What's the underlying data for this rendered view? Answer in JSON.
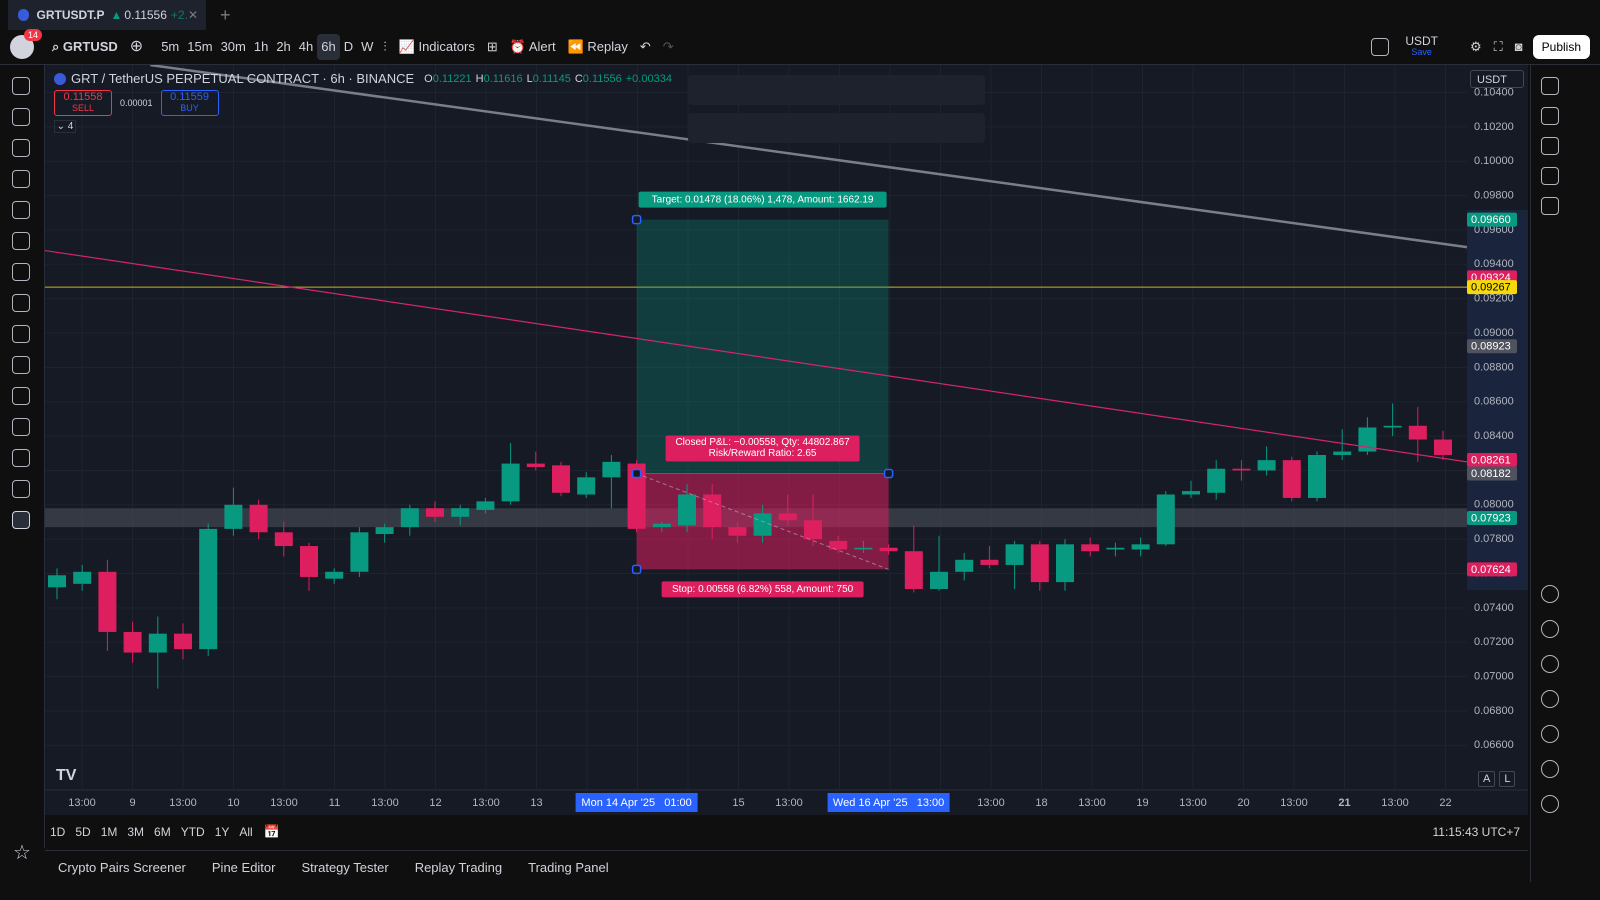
{
  "tab": {
    "symbol": "GRTUSDT.P",
    "price": "0.11556",
    "change": "+2.",
    "badge": "14"
  },
  "toolbar": {
    "symbol": "GRTUSD",
    "intervals": [
      "5m",
      "15m",
      "30m",
      "1h",
      "2h",
      "4h",
      "6h",
      "D",
      "W"
    ],
    "active_interval": "6h",
    "indicators": "Indicators",
    "alert": "Alert",
    "replay": "Replay",
    "currency": "USDT",
    "save": "Save",
    "publish": "Publish"
  },
  "legend": {
    "title": "GRT / TetherUS PERPETUAL CONTRACT · 6h · BINANCE",
    "ohlc": [
      [
        "O",
        "0.11221"
      ],
      [
        "H",
        "0.11616"
      ],
      [
        "L",
        "0.11145"
      ],
      [
        "C",
        "0.11556"
      ]
    ],
    "change": "+0.00334",
    "sell_price": "0.11558",
    "sell": "SELL",
    "spread": "0.00001",
    "buy_price": "0.11559",
    "buy": "BUY",
    "collapsed": "4"
  },
  "chart_data": {
    "type": "candlestick",
    "up_color": "#089981",
    "down_color": "#dd1f5f",
    "ylim": [
      0.0634,
      0.1056
    ],
    "yticks": [
      {
        "value": 0.066,
        "label": "0.06600"
      },
      {
        "value": 0.068,
        "label": "0.06800"
      },
      {
        "value": 0.07,
        "label": "0.07000"
      },
      {
        "value": 0.072,
        "label": "0.07200"
      },
      {
        "value": 0.074,
        "label": "0.07400"
      },
      {
        "value": 0.076,
        "label": "0.07600"
      },
      {
        "value": 0.078,
        "label": "0.07800"
      },
      {
        "value": 0.08,
        "label": "0.08000"
      },
      {
        "value": 0.082,
        "label": "0.08200"
      },
      {
        "value": 0.084,
        "label": "0.08400"
      },
      {
        "value": 0.086,
        "label": "0.08600"
      },
      {
        "value": 0.088,
        "label": "0.08800"
      },
      {
        "value": 0.09,
        "label": "0.09000"
      },
      {
        "value": 0.092,
        "label": "0.09200"
      },
      {
        "value": 0.094,
        "label": "0.09400"
      },
      {
        "value": 0.096,
        "label": "0.09600"
      },
      {
        "value": 0.098,
        "label": "0.09800"
      },
      {
        "value": 0.1,
        "label": "0.10000"
      },
      {
        "value": 0.102,
        "label": "0.10200"
      },
      {
        "value": 0.104,
        "label": "0.10400"
      }
    ],
    "grid": true,
    "axis_currency": "USDT",
    "candles": [
      {
        "o": 0.0752,
        "h": 0.0763,
        "l": 0.0745,
        "c": 0.0759
      },
      {
        "o": 0.0754,
        "h": 0.0765,
        "l": 0.075,
        "c": 0.0761
      },
      {
        "o": 0.0761,
        "h": 0.0768,
        "l": 0.0715,
        "c": 0.0726
      },
      {
        "o": 0.0726,
        "h": 0.0732,
        "l": 0.0708,
        "c": 0.0714
      },
      {
        "o": 0.0714,
        "h": 0.0735,
        "l": 0.0693,
        "c": 0.0725
      },
      {
        "o": 0.0725,
        "h": 0.0731,
        "l": 0.071,
        "c": 0.0716
      },
      {
        "o": 0.0716,
        "h": 0.0789,
        "l": 0.0712,
        "c": 0.0786
      },
      {
        "o": 0.0786,
        "h": 0.081,
        "l": 0.0782,
        "c": 0.08
      },
      {
        "o": 0.08,
        "h": 0.0803,
        "l": 0.078,
        "c": 0.0784
      },
      {
        "o": 0.0784,
        "h": 0.079,
        "l": 0.077,
        "c": 0.0776
      },
      {
        "o": 0.0776,
        "h": 0.0778,
        "l": 0.075,
        "c": 0.0758
      },
      {
        "o": 0.0757,
        "h": 0.0763,
        "l": 0.0754,
        "c": 0.0761
      },
      {
        "o": 0.0761,
        "h": 0.0787,
        "l": 0.0758,
        "c": 0.0784
      },
      {
        "o": 0.0783,
        "h": 0.0789,
        "l": 0.0778,
        "c": 0.0787
      },
      {
        "o": 0.0787,
        "h": 0.08,
        "l": 0.0782,
        "c": 0.0798
      },
      {
        "o": 0.0798,
        "h": 0.0802,
        "l": 0.079,
        "c": 0.0793
      },
      {
        "o": 0.0793,
        "h": 0.08,
        "l": 0.0788,
        "c": 0.0798
      },
      {
        "o": 0.0797,
        "h": 0.0804,
        "l": 0.0795,
        "c": 0.0802
      },
      {
        "o": 0.0802,
        "h": 0.0836,
        "l": 0.08,
        "c": 0.0824
      },
      {
        "o": 0.0824,
        "h": 0.0831,
        "l": 0.082,
        "c": 0.0822
      },
      {
        "o": 0.0823,
        "h": 0.0825,
        "l": 0.0805,
        "c": 0.0807
      },
      {
        "o": 0.0806,
        "h": 0.0819,
        "l": 0.0804,
        "c": 0.0816
      },
      {
        "o": 0.0816,
        "h": 0.0829,
        "l": 0.0798,
        "c": 0.0825
      },
      {
        "o": 0.0824,
        "h": 0.0826,
        "l": 0.0784,
        "c": 0.0786
      },
      {
        "o": 0.0787,
        "h": 0.079,
        "l": 0.0784,
        "c": 0.0789
      },
      {
        "o": 0.0788,
        "h": 0.0812,
        "l": 0.0784,
        "c": 0.0806
      },
      {
        "o": 0.0806,
        "h": 0.0812,
        "l": 0.078,
        "c": 0.0787
      },
      {
        "o": 0.0787,
        "h": 0.079,
        "l": 0.0778,
        "c": 0.0782
      },
      {
        "o": 0.0782,
        "h": 0.08,
        "l": 0.0778,
        "c": 0.0795
      },
      {
        "o": 0.0795,
        "h": 0.0806,
        "l": 0.0788,
        "c": 0.0791
      },
      {
        "o": 0.0791,
        "h": 0.0806,
        "l": 0.0776,
        "c": 0.078
      },
      {
        "o": 0.0779,
        "h": 0.0782,
        "l": 0.0772,
        "c": 0.0774
      },
      {
        "o": 0.0774,
        "h": 0.0779,
        "l": 0.0772,
        "c": 0.0775
      },
      {
        "o": 0.0775,
        "h": 0.0777,
        "l": 0.0771,
        "c": 0.0773
      },
      {
        "o": 0.0773,
        "h": 0.0788,
        "l": 0.0749,
        "c": 0.0751
      },
      {
        "o": 0.0751,
        "h": 0.0782,
        "l": 0.075,
        "c": 0.0761
      },
      {
        "o": 0.0761,
        "h": 0.0772,
        "l": 0.0756,
        "c": 0.0768
      },
      {
        "o": 0.0768,
        "h": 0.0776,
        "l": 0.0763,
        "c": 0.0765
      },
      {
        "o": 0.0765,
        "h": 0.0779,
        "l": 0.0751,
        "c": 0.0777
      },
      {
        "o": 0.0777,
        "h": 0.0779,
        "l": 0.075,
        "c": 0.0755
      },
      {
        "o": 0.0755,
        "h": 0.078,
        "l": 0.075,
        "c": 0.0777
      },
      {
        "o": 0.0777,
        "h": 0.0781,
        "l": 0.077,
        "c": 0.0773
      },
      {
        "o": 0.0774,
        "h": 0.0778,
        "l": 0.077,
        "c": 0.0775
      },
      {
        "o": 0.0774,
        "h": 0.0781,
        "l": 0.077,
        "c": 0.0777
      },
      {
        "o": 0.0777,
        "h": 0.0808,
        "l": 0.0776,
        "c": 0.0806
      },
      {
        "o": 0.0806,
        "h": 0.0814,
        "l": 0.0804,
        "c": 0.0808
      },
      {
        "o": 0.0807,
        "h": 0.0826,
        "l": 0.0803,
        "c": 0.0821
      },
      {
        "o": 0.0821,
        "h": 0.0826,
        "l": 0.0814,
        "c": 0.082
      },
      {
        "o": 0.082,
        "h": 0.0834,
        "l": 0.0817,
        "c": 0.0826
      },
      {
        "o": 0.0826,
        "h": 0.0828,
        "l": 0.0802,
        "c": 0.0804
      },
      {
        "o": 0.0804,
        "h": 0.0831,
        "l": 0.0802,
        "c": 0.0829
      },
      {
        "o": 0.0829,
        "h": 0.0844,
        "l": 0.0826,
        "c": 0.0831
      },
      {
        "o": 0.0831,
        "h": 0.0851,
        "l": 0.0829,
        "c": 0.0845
      },
      {
        "o": 0.0845,
        "h": 0.0859,
        "l": 0.084,
        "c": 0.0846
      },
      {
        "o": 0.0846,
        "h": 0.0857,
        "l": 0.0825,
        "c": 0.0838
      },
      {
        "o": 0.0838,
        "h": 0.0843,
        "l": 0.0826,
        "c": 0.0829
      }
    ],
    "time_labels": [
      "13:00",
      "9",
      "13:00",
      "10",
      "13:00",
      "11",
      "13:00",
      "12",
      "13:00",
      "13",
      null,
      null,
      null,
      "15",
      "13:00",
      null,
      null,
      null,
      "13:00",
      "18",
      "13:00",
      "19",
      "13:00",
      "20",
      "13:00",
      "21",
      "13:00",
      "22"
    ],
    "price_tags": [
      {
        "value": 0.0966,
        "label": "0.09660",
        "color": "#089981"
      },
      {
        "value": 0.09324,
        "label": "0.09324",
        "color": "#dd1f5f"
      },
      {
        "value": 0.09267,
        "label": "0.09267",
        "color": "#f5d90a"
      },
      {
        "value": 0.08923,
        "label": "0.08923",
        "color": "#50535e"
      },
      {
        "value": 0.08261,
        "label": "0.08261",
        "color": "#dd1f5f"
      },
      {
        "value": 0.08182,
        "label": "0.08182",
        "color": "#50535e"
      },
      {
        "value": 0.07923,
        "label": "0.07923",
        "color": "#089981"
      },
      {
        "value": 0.07624,
        "label": "0.07624",
        "color": "#dd1f5f"
      }
    ],
    "horizontal_line": {
      "value": 0.09267,
      "color": "#c9b428"
    },
    "zone": [
      0.0787,
      0.0798
    ],
    "trend_lines": [
      {
        "color": "#7b7e87",
        "points": [
          [
            3.7,
            0.1056
          ],
          [
            55.95,
            0.095
          ]
        ]
      },
      {
        "color": "#d4256a",
        "points": [
          [
            -0.48,
            0.0948
          ],
          [
            55.95,
            0.0825
          ]
        ]
      }
    ],
    "position": {
      "start": 23,
      "end": 33,
      "entry": 0.08182,
      "target": 0.0966,
      "stop": 0.07624,
      "target_label": "Target: 0.01478 (18.06%) 1,478, Amount: 1662.19",
      "closed_label": "Closed P&L: −0.00558, Qty: 44802.867",
      "ratio_label": "Risk/Reward Ratio: 2.65",
      "stop_label": "Stop: 0.00558 (6.82%) 558, Amount: 750",
      "start_time": "Mon 14 Apr '25   01:00",
      "end_time": "Wed 16 Apr '25   13:00"
    }
  },
  "scale_buttons": [
    "A",
    "L"
  ],
  "bottom": {
    "ranges": [
      "1D",
      "5D",
      "1M",
      "3M",
      "6M",
      "YTD",
      "1Y",
      "All"
    ],
    "clock": "11:15:43 UTC+7",
    "tabs": [
      "Crypto Pairs Screener",
      "Pine Editor",
      "Strategy Tester",
      "Replay Trading",
      "Trading Panel"
    ]
  }
}
